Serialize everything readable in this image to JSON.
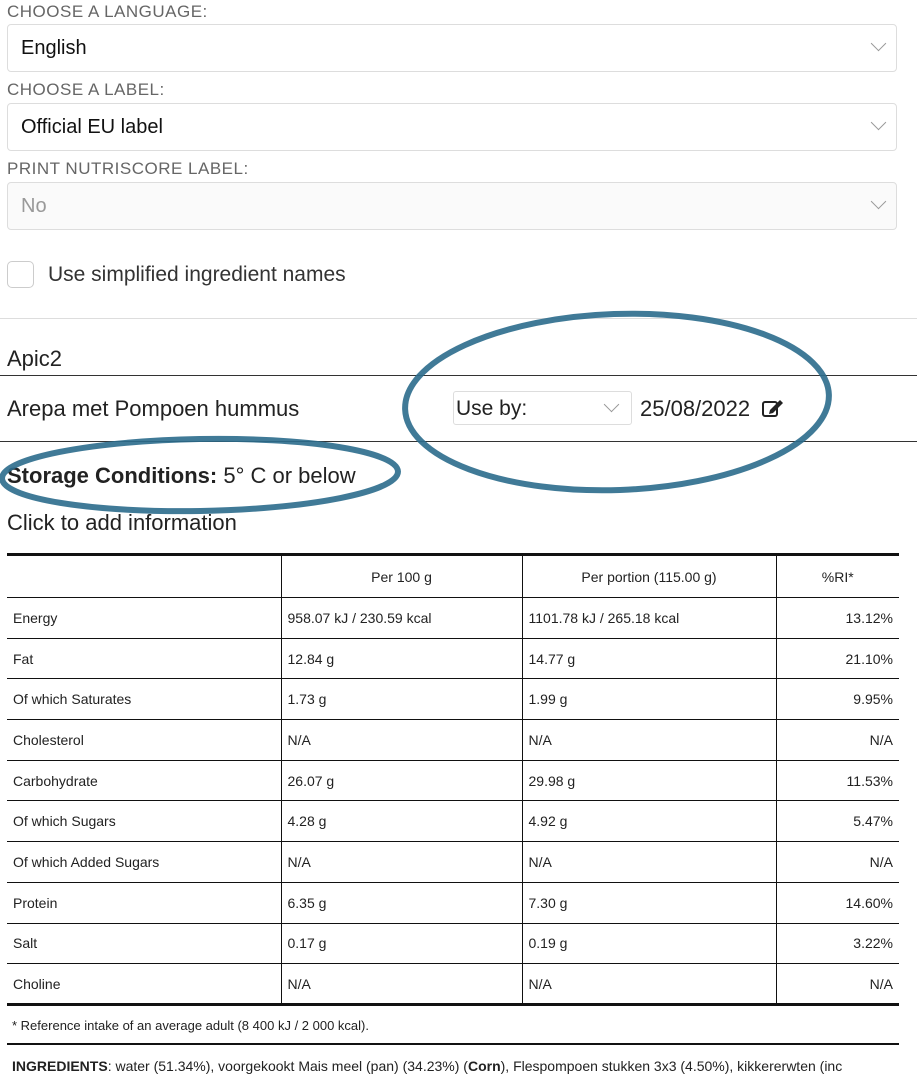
{
  "form": {
    "language_label": "CHOOSE A LANGUAGE:",
    "language_value": "English",
    "label_label": "CHOOSE A LABEL:",
    "label_value": "Official EU label",
    "nutriscore_label": "PRINT NUTRISCORE LABEL:",
    "nutriscore_value": "No",
    "simplified_label": "Use simplified ingredient names",
    "simplified_checked": false
  },
  "product": {
    "company": "Apic2",
    "name": "Arepa met Pompoen hummus",
    "date_type": "Use by:",
    "date": "25/08/2022",
    "storage_label": "Storage Conditions:",
    "storage_value": " 5° C or below",
    "add_info": "Click to add information"
  },
  "annotation_color": "#2b6b8c",
  "nutrition": {
    "headers": [
      "",
      "Per 100 g",
      "Per portion (115.00 g)",
      "%RI*"
    ],
    "rows": [
      [
        "Energy",
        "958.07 kJ / 230.59 kcal",
        "1101.78 kJ / 265.18 kcal",
        "13.12%"
      ],
      [
        "Fat",
        "12.84 g",
        "14.77 g",
        "21.10%"
      ],
      [
        "Of which Saturates",
        "1.73 g",
        "1.99 g",
        "9.95%"
      ],
      [
        "Cholesterol",
        "N/A",
        "N/A",
        "N/A"
      ],
      [
        "Carbohydrate",
        "26.07 g",
        "29.98 g",
        "11.53%"
      ],
      [
        "Of which Sugars",
        "4.28 g",
        "4.92 g",
        "5.47%"
      ],
      [
        "Of which Added Sugars",
        "N/A",
        "N/A",
        "N/A"
      ],
      [
        "Protein",
        "6.35 g",
        "7.30 g",
        "14.60%"
      ],
      [
        "Salt",
        "0.17 g",
        "0.19 g",
        "3.22%"
      ],
      [
        "Choline",
        "N/A",
        "N/A",
        "N/A"
      ]
    ],
    "footnote": "* Reference intake of an average adult (8 400 kJ / 2 000 kcal)."
  },
  "ingredients": {
    "label": "INGREDIENTS",
    "parts": [
      ": water (51.34%), voorgekookt Mais meel (pan) (34.23%) (",
      "Corn",
      "), Flespompoen stukken 3x3 (4.50%), kikkererwten (inc"
    ]
  }
}
